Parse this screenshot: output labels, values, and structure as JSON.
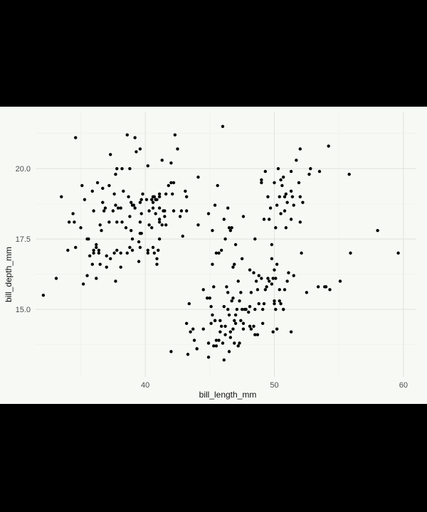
{
  "chart_data": {
    "type": "scatter",
    "title": "",
    "xlabel": "bill_length_mm",
    "ylabel": "bill_depth_mm",
    "xlim": [
      31.5,
      61.0
    ],
    "ylim": [
      12.6,
      22.0
    ],
    "x_ticks": [
      40,
      50,
      60
    ],
    "x_minor_ticks": [
      35,
      45,
      55
    ],
    "y_ticks": [
      15.0,
      17.5,
      20.0
    ],
    "y_minor_ticks": [
      13.75,
      16.25,
      18.75,
      21.25
    ],
    "x_tick_labels": [
      "40",
      "50",
      "60"
    ],
    "y_tick_labels": [
      "15.0",
      "17.5",
      "20.0"
    ],
    "grid": true,
    "legend": "none",
    "point_color": "#000000",
    "points": [
      [
        32.1,
        15.5
      ],
      [
        33.1,
        16.1
      ],
      [
        33.5,
        19.0
      ],
      [
        34.0,
        17.1
      ],
      [
        34.1,
        18.1
      ],
      [
        34.4,
        18.4
      ],
      [
        34.5,
        18.1
      ],
      [
        34.6,
        21.1
      ],
      [
        34.6,
        17.2
      ],
      [
        35.0,
        17.9
      ],
      [
        35.1,
        19.4
      ],
      [
        35.2,
        15.9
      ],
      [
        35.3,
        18.9
      ],
      [
        35.5,
        16.2
      ],
      [
        35.5,
        17.5
      ],
      [
        35.6,
        17.5
      ],
      [
        35.7,
        16.9
      ],
      [
        35.9,
        16.6
      ],
      [
        35.9,
        19.2
      ],
      [
        36.0,
        17.0
      ],
      [
        36.0,
        17.1
      ],
      [
        36.0,
        18.5
      ],
      [
        36.2,
        16.1
      ],
      [
        36.2,
        17.2
      ],
      [
        36.2,
        17.3
      ],
      [
        36.3,
        19.5
      ],
      [
        36.4,
        17.0
      ],
      [
        36.4,
        17.1
      ],
      [
        36.5,
        16.6
      ],
      [
        36.5,
        18.0
      ],
      [
        36.6,
        17.8
      ],
      [
        36.7,
        18.8
      ],
      [
        36.7,
        19.3
      ],
      [
        36.8,
        18.5
      ],
      [
        36.9,
        18.6
      ],
      [
        37.0,
        16.5
      ],
      [
        37.0,
        16.9
      ],
      [
        37.2,
        18.1
      ],
      [
        37.2,
        19.4
      ],
      [
        37.3,
        16.8
      ],
      [
        37.3,
        20.5
      ],
      [
        37.5,
        18.5
      ],
      [
        37.6,
        17.0
      ],
      [
        37.6,
        19.1
      ],
      [
        37.7,
        16.0
      ],
      [
        37.7,
        18.7
      ],
      [
        37.7,
        19.8
      ],
      [
        37.8,
        17.1
      ],
      [
        37.8,
        18.1
      ],
      [
        37.8,
        20.0
      ],
      [
        37.9,
        18.6
      ],
      [
        38.1,
        16.5
      ],
      [
        38.1,
        17.0
      ],
      [
        38.1,
        18.6
      ],
      [
        38.2,
        18.1
      ],
      [
        38.2,
        20.0
      ],
      [
        38.3,
        19.2
      ],
      [
        38.5,
        17.9
      ],
      [
        38.6,
        17.0
      ],
      [
        38.6,
        21.2
      ],
      [
        38.7,
        19.0
      ],
      [
        38.8,
        17.2
      ],
      [
        38.8,
        18.3
      ],
      [
        38.8,
        20.0
      ],
      [
        38.9,
        17.8
      ],
      [
        38.9,
        18.8
      ],
      [
        39.0,
        17.1
      ],
      [
        39.0,
        17.5
      ],
      [
        39.0,
        18.7
      ],
      [
        39.1,
        18.7
      ],
      [
        39.2,
        18.6
      ],
      [
        39.2,
        21.1
      ],
      [
        39.3,
        20.6
      ],
      [
        39.5,
        16.7
      ],
      [
        39.5,
        17.4
      ],
      [
        39.6,
        17.2
      ],
      [
        39.6,
        17.7
      ],
      [
        39.6,
        18.1
      ],
      [
        39.6,
        18.8
      ],
      [
        39.6,
        20.7
      ],
      [
        39.7,
        17.7
      ],
      [
        39.7,
        18.4
      ],
      [
        39.7,
        18.9
      ],
      [
        39.8,
        19.1
      ],
      [
        40.1,
        18.9
      ],
      [
        40.2,
        17.0
      ],
      [
        40.2,
        17.1
      ],
      [
        40.2,
        20.1
      ],
      [
        40.3,
        18.0
      ],
      [
        40.3,
        18.5
      ],
      [
        40.5,
        17.9
      ],
      [
        40.5,
        18.9
      ],
      [
        40.6,
        17.2
      ],
      [
        40.6,
        18.6
      ],
      [
        40.6,
        18.8
      ],
      [
        40.6,
        19.0
      ],
      [
        40.7,
        17.0
      ],
      [
        40.7,
        19.0
      ],
      [
        40.8,
        18.4
      ],
      [
        40.8,
        18.9
      ],
      [
        40.9,
        16.6
      ],
      [
        40.9,
        16.8
      ],
      [
        40.9,
        18.9
      ],
      [
        41.0,
        17.1
      ],
      [
        41.1,
        17.5
      ],
      [
        41.1,
        18.1
      ],
      [
        41.1,
        18.2
      ],
      [
        41.1,
        18.6
      ],
      [
        41.1,
        19.0
      ],
      [
        41.1,
        19.1
      ],
      [
        41.3,
        18.0
      ],
      [
        41.3,
        20.3
      ],
      [
        41.4,
        18.5
      ],
      [
        41.5,
        18.3
      ],
      [
        41.5,
        18.5
      ],
      [
        41.6,
        18.0
      ],
      [
        41.6,
        19.1
      ],
      [
        41.8,
        19.4
      ],
      [
        42.0,
        19.5
      ],
      [
        42.0,
        20.2
      ],
      [
        42.1,
        19.1
      ],
      [
        42.2,
        18.5
      ],
      [
        42.2,
        19.5
      ],
      [
        42.3,
        21.2
      ],
      [
        42.5,
        20.7
      ],
      [
        42.7,
        18.3
      ],
      [
        42.8,
        18.5
      ],
      [
        42.9,
        17.6
      ],
      [
        43.1,
        19.2
      ],
      [
        43.2,
        18.5
      ],
      [
        43.2,
        19.0
      ],
      [
        44.1,
        18.0
      ],
      [
        44.1,
        19.7
      ],
      [
        44.9,
        18.4
      ],
      [
        45.2,
        16.6
      ],
      [
        45.2,
        17.8
      ],
      [
        45.4,
        18.7
      ],
      [
        45.5,
        17.0
      ],
      [
        45.6,
        19.4
      ],
      [
        45.7,
        17.0
      ],
      [
        45.9,
        17.1
      ],
      [
        46.0,
        21.5
      ],
      [
        46.1,
        18.2
      ],
      [
        46.2,
        17.5
      ],
      [
        46.4,
        18.6
      ],
      [
        46.5,
        17.9
      ],
      [
        46.6,
        17.8
      ],
      [
        46.7,
        17.9
      ],
      [
        46.8,
        16.5
      ],
      [
        46.9,
        16.6
      ],
      [
        47.0,
        17.3
      ],
      [
        47.5,
        16.8
      ],
      [
        47.6,
        18.3
      ],
      [
        48.1,
        16.4
      ],
      [
        48.4,
        16.3
      ],
      [
        48.5,
        17.5
      ],
      [
        49.0,
        19.5
      ],
      [
        49.0,
        19.6
      ],
      [
        49.2,
        18.2
      ],
      [
        49.3,
        19.9
      ],
      [
        49.5,
        19.0
      ],
      [
        49.6,
        18.2
      ],
      [
        49.7,
        18.6
      ],
      [
        49.8,
        17.3
      ],
      [
        50.0,
        19.5
      ],
      [
        50.1,
        17.9
      ],
      [
        50.2,
        18.7
      ],
      [
        50.3,
        20.0
      ],
      [
        50.4,
        19.0
      ],
      [
        50.5,
        18.4
      ],
      [
        50.5,
        19.6
      ],
      [
        50.6,
        19.4
      ],
      [
        50.7,
        19.7
      ],
      [
        50.8,
        18.5
      ],
      [
        50.8,
        19.0
      ],
      [
        50.9,
        17.9
      ],
      [
        50.9,
        19.1
      ],
      [
        51.0,
        18.8
      ],
      [
        51.3,
        18.2
      ],
      [
        51.3,
        19.2
      ],
      [
        51.3,
        19.9
      ],
      [
        51.4,
        19.0
      ],
      [
        51.5,
        18.7
      ],
      [
        51.7,
        20.3
      ],
      [
        51.9,
        19.5
      ],
      [
        52.0,
        18.1
      ],
      [
        52.0,
        19.0
      ],
      [
        52.0,
        20.7
      ],
      [
        52.2,
        18.8
      ],
      [
        52.7,
        19.8
      ],
      [
        52.8,
        20.0
      ],
      [
        53.5,
        19.9
      ],
      [
        54.2,
        20.8
      ],
      [
        55.8,
        19.8
      ],
      [
        58.0,
        17.8
      ],
      [
        42.0,
        13.5
      ],
      [
        43.2,
        14.5
      ],
      [
        43.3,
        13.4
      ],
      [
        43.5,
        14.2
      ],
      [
        44.0,
        13.6
      ],
      [
        44.5,
        14.3
      ],
      [
        44.9,
        13.3
      ],
      [
        45.1,
        14.5
      ],
      [
        45.3,
        13.7
      ],
      [
        45.4,
        14.6
      ],
      [
        45.5,
        13.7
      ],
      [
        45.7,
        13.9
      ],
      [
        45.8,
        14.2
      ],
      [
        46.1,
        13.2
      ],
      [
        46.2,
        14.1
      ],
      [
        46.4,
        15.0
      ],
      [
        46.5,
        13.5
      ],
      [
        46.6,
        14.2
      ],
      [
        46.8,
        14.3
      ],
      [
        47.0,
        14.5
      ],
      [
        47.2,
        13.7
      ],
      [
        47.3,
        13.8
      ],
      [
        47.4,
        14.6
      ],
      [
        47.6,
        14.5
      ],
      [
        47.7,
        15.0
      ],
      [
        48.1,
        15.1
      ],
      [
        48.2,
        14.3
      ],
      [
        48.4,
        14.4
      ],
      [
        48.5,
        14.1
      ],
      [
        48.6,
        16.0
      ],
      [
        48.7,
        14.1
      ],
      [
        49.0,
        16.1
      ],
      [
        49.1,
        14.5
      ],
      [
        49.3,
        15.7
      ],
      [
        49.5,
        16.1
      ],
      [
        49.8,
        16.8
      ],
      [
        50.0,
        15.2
      ],
      [
        50.1,
        15.0
      ],
      [
        50.2,
        14.3
      ],
      [
        50.4,
        15.7
      ],
      [
        50.5,
        15.2
      ],
      [
        50.7,
        15.0
      ],
      [
        50.8,
        15.7
      ],
      [
        51.1,
        16.3
      ],
      [
        49.9,
        16.1
      ],
      [
        48.8,
        16.2
      ],
      [
        47.5,
        15.0
      ],
      [
        46.9,
        14.6
      ],
      [
        45.0,
        15.4
      ],
      [
        44.0,
        13.6
      ],
      [
        45.5,
        13.9
      ],
      [
        46.3,
        15.8
      ],
      [
        46.2,
        14.4
      ],
      [
        47.8,
        15.0
      ],
      [
        46.5,
        14.8
      ],
      [
        47.1,
        15.0
      ],
      [
        48.2,
        15.6
      ],
      [
        49.2,
        15.2
      ],
      [
        52.5,
        15.6
      ],
      [
        53.4,
        15.8
      ],
      [
        54.3,
        15.7
      ],
      [
        55.1,
        16.0
      ],
      [
        59.6,
        17.0
      ],
      [
        43.8,
        13.9
      ],
      [
        44.8,
        15.4
      ],
      [
        45.3,
        15.8
      ],
      [
        46.1,
        15.1
      ],
      [
        46.7,
        15.3
      ],
      [
        47.3,
        15.3
      ],
      [
        48.0,
        14.9
      ],
      [
        49.4,
        15.8
      ],
      [
        50.0,
        15.3
      ],
      [
        51.3,
        14.2
      ],
      [
        50.1,
        16.1
      ],
      [
        49.1,
        15.0
      ],
      [
        48.7,
        15.7
      ],
      [
        47.0,
        14.8
      ],
      [
        45.4,
        14.6
      ],
      [
        46.0,
        13.8
      ],
      [
        46.8,
        15.4
      ],
      [
        47.6,
        14.3
      ],
      [
        48.8,
        15.2
      ],
      [
        49.8,
        15.9
      ],
      [
        50.4,
        15.3
      ],
      [
        46.4,
        15.6
      ],
      [
        45.2,
        14.8
      ],
      [
        44.5,
        15.7
      ],
      [
        43.4,
        15.2
      ],
      [
        45.1,
        15.1
      ],
      [
        47.4,
        15.6
      ],
      [
        48.5,
        15.0
      ],
      [
        49.6,
        16.0
      ],
      [
        50.0,
        16.4
      ],
      [
        50.2,
        16.6
      ],
      [
        51.5,
        16.2
      ],
      [
        51.0,
        16.0
      ],
      [
        45.8,
        14.6
      ],
      [
        46.9,
        13.8
      ],
      [
        48.1,
        14.4
      ],
      [
        49.9,
        14.2
      ],
      [
        50.7,
        15.0
      ],
      [
        52.1,
        17.0
      ],
      [
        47.2,
        16.0
      ],
      [
        46.6,
        14.0
      ],
      [
        44.9,
        13.8
      ],
      [
        45.9,
        14.4
      ],
      [
        43.7,
        14.3
      ],
      [
        55.9,
        17.0
      ],
      [
        54.0,
        15.8
      ],
      [
        53.9,
        15.8
      ]
    ]
  }
}
